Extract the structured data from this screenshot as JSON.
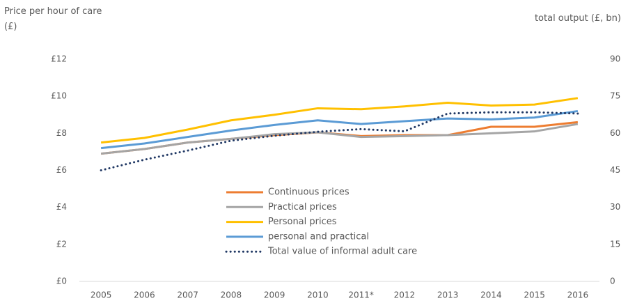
{
  "chart_data": {
    "type": "line",
    "y_label": "Price per hour of care (£)",
    "y2_label": "total output (£, bn)",
    "categories": [
      "2005",
      "2006",
      "2007",
      "2008",
      "2009",
      "2010",
      "2011*",
      "2012",
      "2013",
      "2014",
      "2015",
      "2016"
    ],
    "series": [
      {
        "name": "Continuous prices",
        "color": "#ed7d31",
        "values": [
          6.9,
          7.15,
          7.5,
          7.7,
          7.9,
          8.05,
          7.85,
          7.9,
          7.9,
          8.35,
          8.35,
          8.6
        ]
      },
      {
        "name": "Practical prices",
        "color": "#a5a5a5",
        "values": [
          6.9,
          7.15,
          7.5,
          7.7,
          7.95,
          8.05,
          7.8,
          7.85,
          7.9,
          8.0,
          8.1,
          8.5
        ]
      },
      {
        "name": "Personal prices",
        "color": "#ffc000",
        "values": [
          7.5,
          7.75,
          8.2,
          8.7,
          9.0,
          9.35,
          9.3,
          9.45,
          9.65,
          9.5,
          9.55,
          9.9
        ]
      },
      {
        "name": "personal and practical",
        "color": "#5b9bd5",
        "values": [
          7.2,
          7.45,
          7.8,
          8.15,
          8.45,
          8.7,
          8.5,
          8.65,
          8.8,
          8.75,
          8.85,
          9.2
        ]
      },
      {
        "name": "Total value of informal adult care",
        "color": "#203864",
        "style": "dotted",
        "axis": "y2",
        "values": [
          45,
          49.3,
          53,
          57,
          59,
          60.6,
          61.7,
          60.8,
          68,
          68.5,
          68.5,
          68
        ]
      }
    ],
    "ylim": [
      0,
      12
    ],
    "yticks": [
      {
        "value": 0,
        "label": "£0"
      },
      {
        "value": 2,
        "label": "£2"
      },
      {
        "value": 4,
        "label": "£4"
      },
      {
        "value": 6,
        "label": "£6"
      },
      {
        "value": 8,
        "label": "£8"
      },
      {
        "value": 10,
        "label": "£10"
      },
      {
        "value": 12,
        "label": "£12"
      }
    ],
    "y2lim": [
      0,
      90
    ],
    "y2ticks": [
      0,
      15,
      30,
      45,
      60,
      75,
      90
    ],
    "grid": false
  }
}
